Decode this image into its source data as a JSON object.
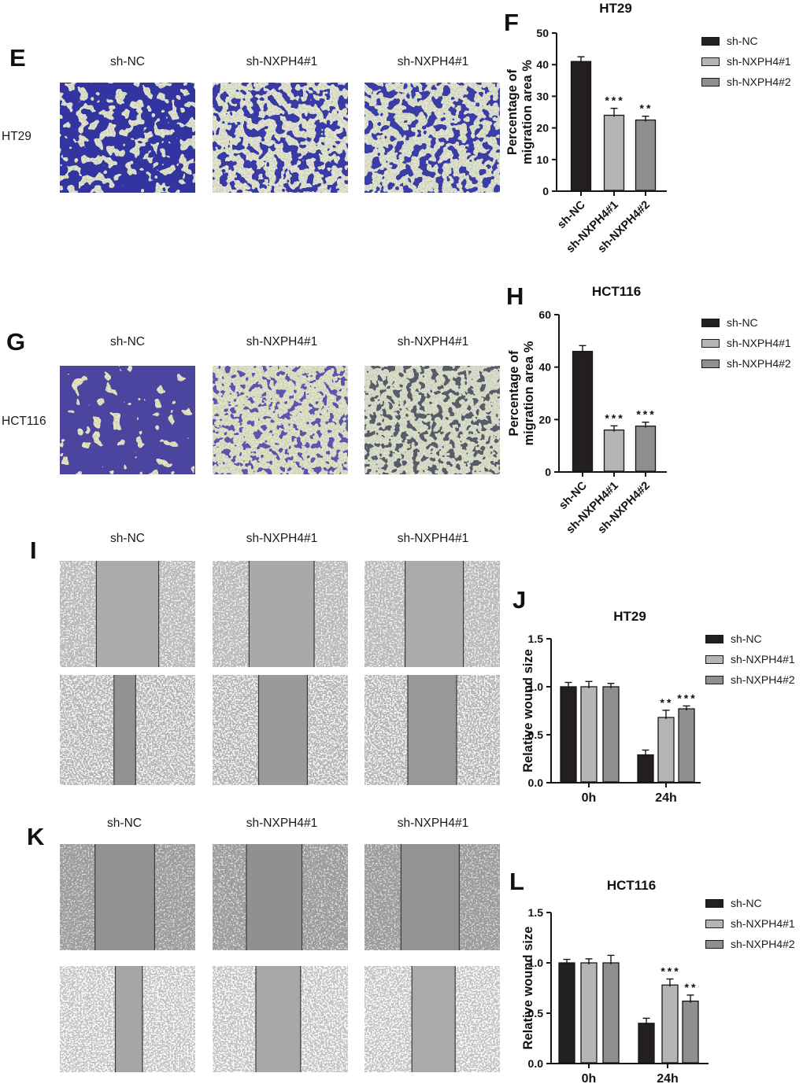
{
  "figure": {
    "panels": {
      "E": {
        "letter": "E",
        "row_label": "HT29",
        "col_labels": [
          "sh-NC",
          "sh-NXPH4#1",
          "sh-NXPH4#1"
        ]
      },
      "F": {
        "letter": "F"
      },
      "G": {
        "letter": "G",
        "row_label": "HCT116",
        "col_labels": [
          "sh-NC",
          "sh-NXPH4#1",
          "sh-NXPH4#1"
        ]
      },
      "H": {
        "letter": "H"
      },
      "I": {
        "letter": "I",
        "col_labels": [
          "sh-NC",
          "sh-NXPH4#1",
          "sh-NXPH4#1"
        ]
      },
      "J": {
        "letter": "J"
      },
      "K": {
        "letter": "K",
        "col_labels": [
          "sh-NC",
          "sh-NXPH4#1",
          "sh-NXPH4#1"
        ]
      },
      "L": {
        "letter": "L"
      }
    },
    "images": {
      "E": [
        {
          "kind": "transwell",
          "bg": "#e3e6d0",
          "stain": "#3336a0",
          "freq": 0.085,
          "thresh": 2.3,
          "seed": 11
        },
        {
          "kind": "transwell",
          "bg": "#e6e8d6",
          "stain": "#383ba6",
          "freq": 0.1,
          "thresh": 2.62,
          "seed": 23
        },
        {
          "kind": "transwell",
          "bg": "#e2e6d4",
          "stain": "#3a3da6",
          "freq": 0.1,
          "thresh": 2.62,
          "seed": 37
        }
      ],
      "G": [
        {
          "kind": "transwell",
          "bg": "#e9e6c4",
          "stain": "#4c45a0",
          "freq": 0.075,
          "thresh": 2.0,
          "seed": 5
        },
        {
          "kind": "transwell",
          "bg": "#e4e5cc",
          "stain": "#5a54ae",
          "freq": 0.13,
          "thresh": 2.8,
          "seed": 17
        },
        {
          "kind": "transwell",
          "bg": "#dee0d0",
          "stain": "#565b68",
          "freq": 0.13,
          "thresh": 2.72,
          "seed": 29
        }
      ],
      "I": [
        {
          "kind": "wound",
          "side": "#b9b9b9",
          "speckle": "#f4f4f4",
          "band": "#ababab",
          "band_x": 0.27,
          "band_w": 0.46,
          "sp": 2.75,
          "seed": 3
        },
        {
          "kind": "wound",
          "side": "#b9b9b9",
          "speckle": "#f4f4f4",
          "band": "#a9a9ab",
          "band_x": 0.27,
          "band_w": 0.48,
          "sp": 2.75,
          "seed": 7
        },
        {
          "kind": "wound",
          "side": "#b9b9b9",
          "speckle": "#f2f2f2",
          "band": "#ababad",
          "band_x": 0.3,
          "band_w": 0.43,
          "sp": 2.75,
          "seed": 13
        },
        {
          "kind": "wound",
          "side": "#b3b3b3",
          "speckle": "#f6f6f6",
          "band": "#929294",
          "band_x": 0.4,
          "band_w": 0.16,
          "sp": 2.6,
          "seed": 19
        },
        {
          "kind": "wound",
          "side": "#b3b3b3",
          "speckle": "#f6f6f6",
          "band": "#9a9a9c",
          "band_x": 0.34,
          "band_w": 0.36,
          "sp": 2.6,
          "seed": 31
        },
        {
          "kind": "wound",
          "side": "#b3b3b3",
          "speckle": "#f6f6f6",
          "band": "#98989a",
          "band_x": 0.32,
          "band_w": 0.36,
          "sp": 2.6,
          "seed": 41
        }
      ],
      "K": [
        {
          "kind": "wound",
          "side": "#9c9c9e",
          "speckle": "#d8d8d8",
          "band": "#929294",
          "band_x": 0.26,
          "band_w": 0.44,
          "sp": 2.8,
          "seed": 43
        },
        {
          "kind": "wound",
          "side": "#9c9c9e",
          "speckle": "#dcdcdc",
          "band": "#909092",
          "band_x": 0.25,
          "band_w": 0.41,
          "sp": 2.8,
          "seed": 47
        },
        {
          "kind": "wound",
          "side": "#9c9c9e",
          "speckle": "#d8d8d8",
          "band": "#939395",
          "band_x": 0.27,
          "band_w": 0.43,
          "sp": 2.8,
          "seed": 53
        },
        {
          "kind": "wound",
          "side": "#c2c2c2",
          "speckle": "#ffffff",
          "band": "#a6a6a8",
          "band_x": 0.41,
          "band_w": 0.2,
          "sp": 2.62,
          "seed": 59
        },
        {
          "kind": "wound",
          "side": "#c2c2c2",
          "speckle": "#ffffff",
          "band": "#a8a8aa",
          "band_x": 0.32,
          "band_w": 0.33,
          "sp": 2.62,
          "seed": 61
        },
        {
          "kind": "wound",
          "side": "#c2c2c2",
          "speckle": "#ffffff",
          "band": "#aaaaac",
          "band_x": 0.35,
          "band_w": 0.32,
          "sp": 2.62,
          "seed": 67
        }
      ]
    }
  },
  "chart_data": [
    {
      "id": "F",
      "type": "bar",
      "title": "HT29",
      "ylabel": "Percentage of migration area %",
      "ylabel_lines": [
        "Percentage of",
        "migration area %"
      ],
      "categories": [
        "sh-NC",
        "sh-NXPH4#1",
        "sh-NXPH4#2"
      ],
      "values": [
        41,
        24,
        22.5
      ],
      "errors": [
        1.5,
        2.2,
        1.2
      ],
      "significance": [
        "",
        "***",
        "**"
      ],
      "ylim": [
        0,
        50
      ],
      "yticks": [
        0,
        10,
        20,
        30,
        40,
        50
      ],
      "ytick_labels": [
        "0",
        "10",
        "20",
        "30",
        "40",
        "50"
      ],
      "bar_colors": [
        "#231f20",
        "#b4b5b7",
        "#8e8f91"
      ],
      "legend": [
        "sh-NC",
        "sh-NXPH4#1",
        "sh-NXPH4#2"
      ],
      "legend_position": "right"
    },
    {
      "id": "H",
      "type": "bar",
      "title": "HCT116",
      "ylabel": "Percentage of migration area %",
      "ylabel_lines": [
        "Percentage of",
        "migration area %"
      ],
      "categories": [
        "sh-NC",
        "sh-NXPH4#1",
        "sh-NXPH4#2"
      ],
      "values": [
        46,
        16,
        17.5
      ],
      "errors": [
        2.2,
        1.6,
        1.5
      ],
      "significance": [
        "",
        "***",
        "***"
      ],
      "ylim": [
        0,
        60
      ],
      "yticks": [
        0,
        20,
        40,
        60
      ],
      "ytick_labels": [
        "0",
        "20",
        "40",
        "60"
      ],
      "bar_colors": [
        "#231f20",
        "#b4b5b7",
        "#8e8f91"
      ],
      "legend": [
        "sh-NC",
        "sh-NXPH4#1",
        "sh-NXPH4#2"
      ],
      "legend_position": "right"
    },
    {
      "id": "J",
      "type": "grouped_bar",
      "title": "HT29",
      "ylabel": "Relative wound size",
      "groups": [
        "0h",
        "24h"
      ],
      "series": [
        {
          "name": "sh-NC",
          "values": [
            1.0,
            0.29
          ],
          "errors": [
            0.045,
            0.05
          ]
        },
        {
          "name": "sh-NXPH4#1",
          "values": [
            1.0,
            0.68
          ],
          "errors": [
            0.055,
            0.075
          ]
        },
        {
          "name": "sh-NXPH4#2",
          "values": [
            1.0,
            0.77
          ],
          "errors": [
            0.035,
            0.03
          ]
        }
      ],
      "significance_by_group": [
        [
          "",
          "",
          ""
        ],
        [
          "",
          "**",
          "***"
        ]
      ],
      "ylim": [
        0,
        1.5
      ],
      "yticks": [
        0,
        0.5,
        1,
        1.5
      ],
      "ytick_labels": [
        "0.0",
        "0.5",
        "1.0",
        "1.5"
      ],
      "bar_colors": [
        "#231f20",
        "#b4b5b7",
        "#8e8f91"
      ],
      "legend": [
        "sh-NC",
        "sh-NXPH4#1",
        "sh-NXPH4#2"
      ],
      "legend_position": "right"
    },
    {
      "id": "L",
      "type": "grouped_bar",
      "title": "HCT116",
      "ylabel": "Relative wound size",
      "groups": [
        "0h",
        "24h"
      ],
      "series": [
        {
          "name": "sh-NC",
          "values": [
            1.0,
            0.4
          ],
          "errors": [
            0.035,
            0.05
          ]
        },
        {
          "name": "sh-NXPH4#1",
          "values": [
            1.0,
            0.78
          ],
          "errors": [
            0.04,
            0.06
          ]
        },
        {
          "name": "sh-NXPH4#2",
          "values": [
            1.0,
            0.62
          ],
          "errors": [
            0.075,
            0.06
          ]
        }
      ],
      "significance_by_group": [
        [
          "",
          "",
          ""
        ],
        [
          "",
          "***",
          "**"
        ]
      ],
      "ylim": [
        0,
        1.5
      ],
      "yticks": [
        0,
        0.5,
        1,
        1.5
      ],
      "ytick_labels": [
        "0.0",
        "0.5",
        "1.0",
        "1.5"
      ],
      "bar_colors": [
        "#231f20",
        "#b4b5b7",
        "#8e8f91"
      ],
      "legend": [
        "sh-NC",
        "sh-NXPH4#1",
        "sh-NXPH4#2"
      ],
      "legend_position": "right"
    }
  ]
}
